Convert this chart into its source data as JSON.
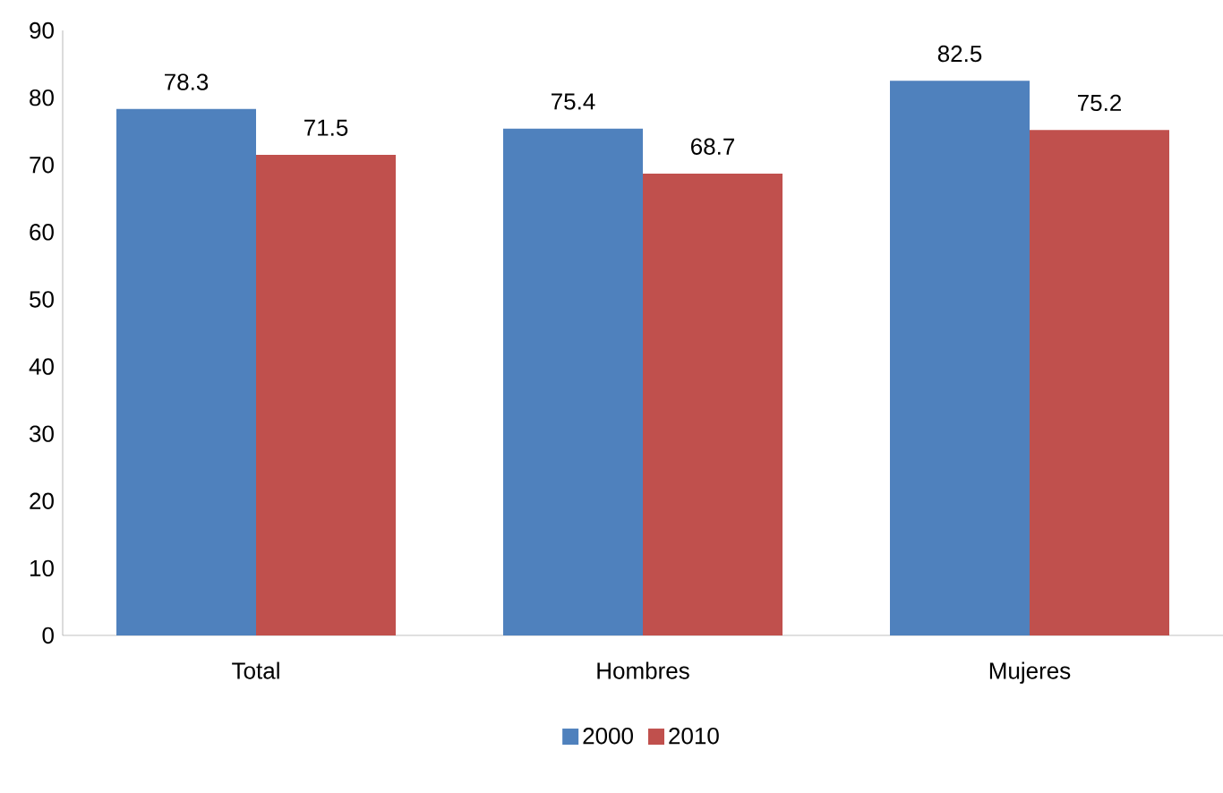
{
  "chart_data": {
    "type": "bar",
    "categories": [
      "Total",
      "Hombres",
      "Mujeres"
    ],
    "series": [
      {
        "name": "2000",
        "color": "#4f81bd",
        "values": [
          78.3,
          75.4,
          82.5
        ]
      },
      {
        "name": "2010",
        "color": "#c0504d",
        "values": [
          71.5,
          68.7,
          75.2
        ]
      }
    ],
    "ylim": [
      0,
      90
    ],
    "yticks": [
      0,
      10,
      20,
      30,
      40,
      50,
      60,
      70,
      80,
      90
    ],
    "grid": false,
    "legend": "bottom",
    "data_labels": true
  }
}
